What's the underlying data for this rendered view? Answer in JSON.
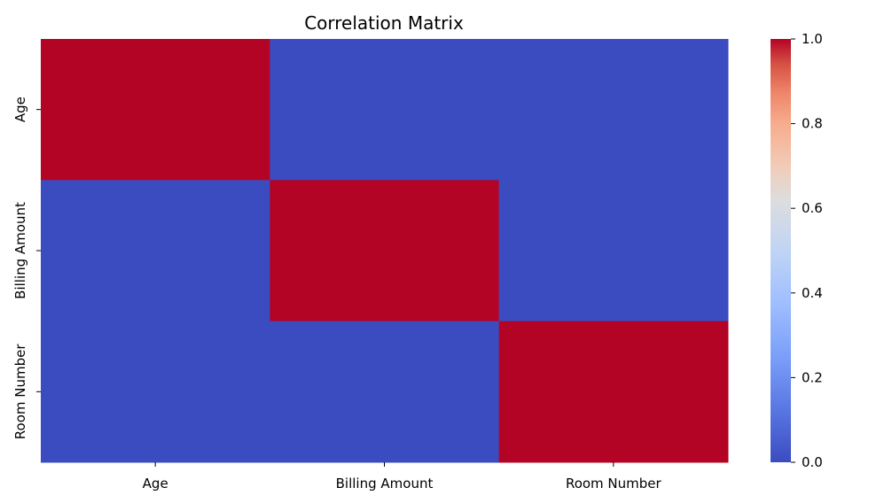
{
  "chart_data": {
    "type": "heatmap",
    "title": "Correlation Matrix",
    "x_categories": [
      "Age",
      "Billing Amount",
      "Room Number"
    ],
    "y_categories": [
      "Age",
      "Billing Amount",
      "Room Number"
    ],
    "values": [
      [
        1.0,
        -0.004,
        -0.005
      ],
      [
        -0.004,
        1.0,
        -0.003
      ],
      [
        -0.005,
        -0.003,
        1.0
      ]
    ],
    "colormap": "coolwarm",
    "colorbar": {
      "range": [
        0.0,
        1.0
      ],
      "ticks": [
        "0.0",
        "0.2",
        "0.4",
        "0.6",
        "0.8",
        "1.0"
      ],
      "tick_values": [
        0.0,
        0.2,
        0.4,
        0.6,
        0.8,
        1.0
      ]
    },
    "colors": {
      "low": "#3b4cc0",
      "mid": "#dddddd",
      "high": "#b40426"
    }
  }
}
